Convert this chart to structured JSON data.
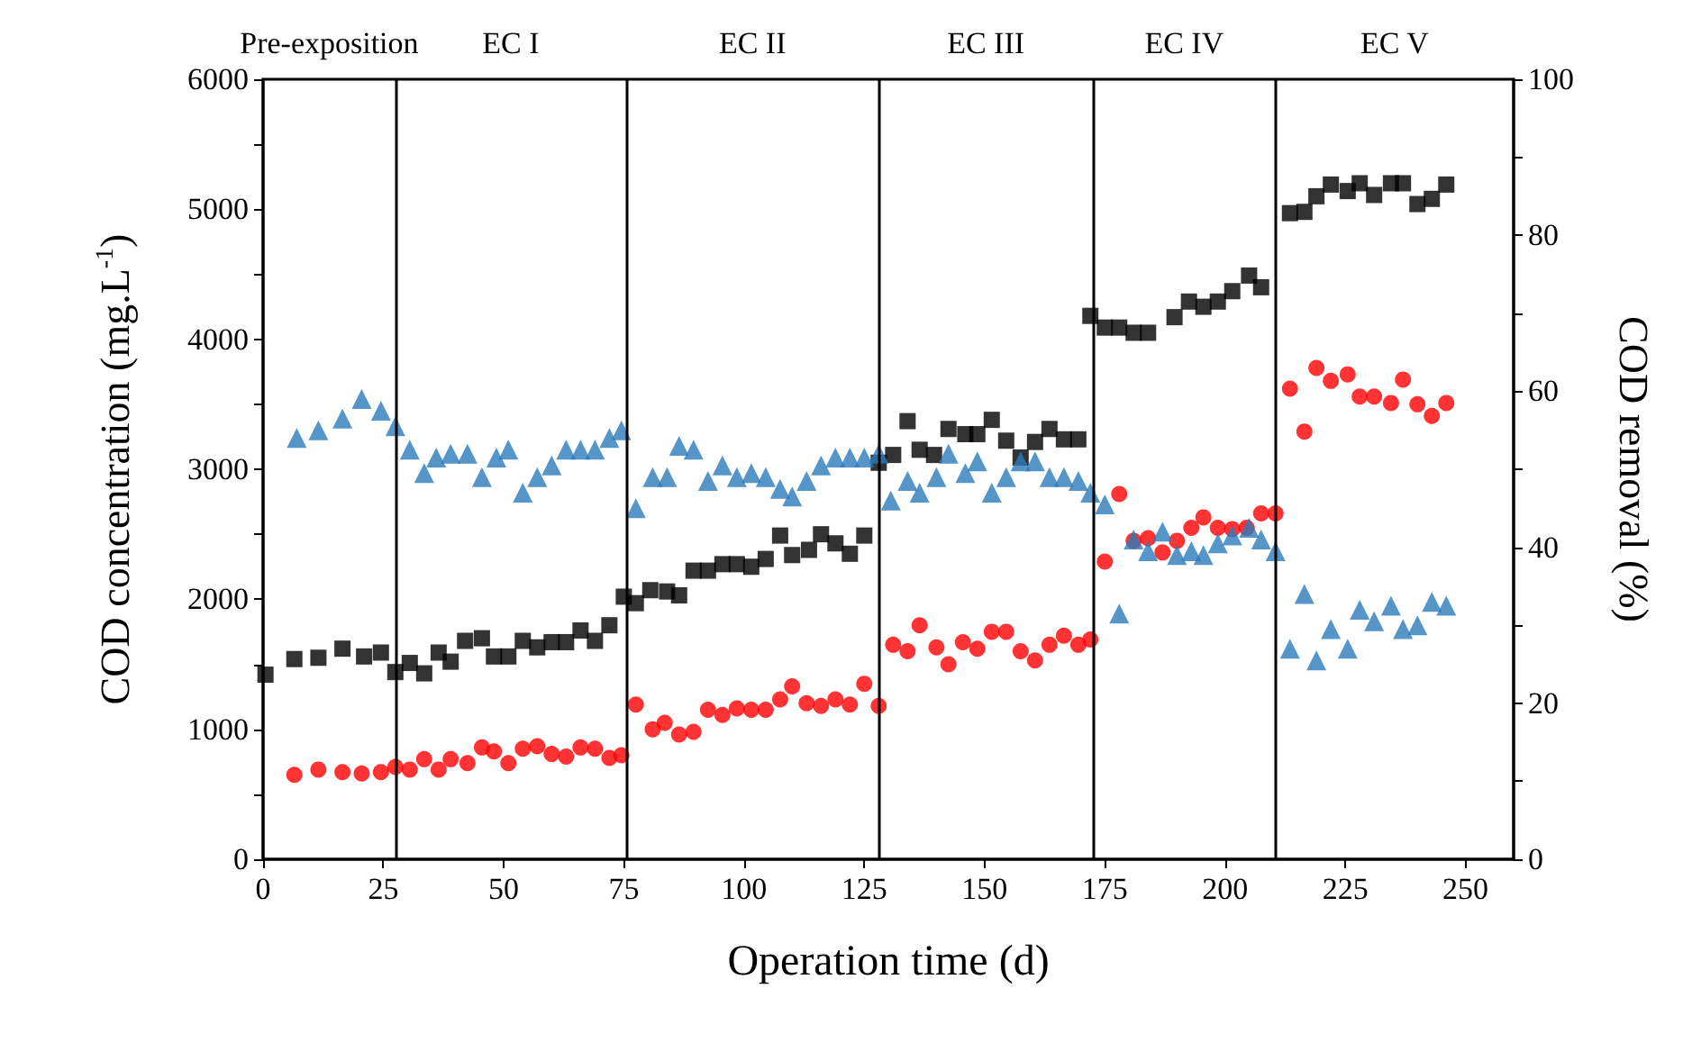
{
  "chart_data": {
    "type": "scatter",
    "xlabel": "Operation time (d)",
    "ylabel": "COD concentration (mg.L$^{-1}$)",
    "y2label": "COD removal (%)",
    "xlim": [
      0,
      260
    ],
    "xticks": [
      0,
      25,
      50,
      75,
      100,
      125,
      150,
      175,
      200,
      225,
      250
    ],
    "ylim": [
      0,
      6000
    ],
    "yticks": [
      0,
      {
        "value": 500,
        "label": null
      },
      1000,
      {
        "value": 1500,
        "label": null
      },
      2000,
      {
        "value": 2500,
        "label": null
      },
      3000,
      {
        "value": 3500,
        "label": null
      },
      4000,
      {
        "value": 4500,
        "label": null
      },
      5000,
      {
        "value": 5500,
        "label": null
      },
      6000
    ],
    "y2lim": [
      0,
      100
    ],
    "y2ticks": [
      0,
      {
        "value": 10,
        "label": null
      },
      20,
      {
        "value": 30,
        "label": null
      },
      40,
      {
        "value": 50,
        "label": null
      },
      60,
      {
        "value": 70,
        "label": null
      },
      80,
      {
        "value": 90,
        "label": null
      },
      100
    ],
    "grid": false,
    "ref_lines": [
      {
        "axis": "x",
        "value": 27.5,
        "color": "#000000"
      },
      {
        "axis": "x",
        "value": 75.5,
        "color": "#000000"
      },
      {
        "axis": "x",
        "value": 128,
        "color": "#000000"
      },
      {
        "axis": "x",
        "value": 172.5,
        "color": "#000000"
      },
      {
        "axis": "x",
        "value": 210.5,
        "color": "#000000"
      }
    ],
    "annotations": [
      "Pre-exposition",
      "EC I",
      "EC II",
      "EC III",
      "EC IV",
      "EC V"
    ],
    "series": [
      {
        "color": "#000000",
        "marker": "square",
        "x": [
          0.5,
          6.5,
          11.5,
          16.5,
          21,
          24.5,
          27.5,
          30.5,
          33.5,
          36.5,
          39,
          42,
          45.5,
          48,
          51,
          54,
          57,
          60,
          63,
          66,
          69,
          72,
          75,
          77.5,
          80.5,
          84,
          86.5,
          89.5,
          92.5,
          95.5,
          98.5,
          101.5,
          104.5,
          107.5,
          110,
          113.5,
          116,
          119,
          122,
          125,
          128,
          131,
          134,
          136.5,
          139.5,
          142.5,
          146,
          148.5,
          151.5,
          154.5,
          157.5,
          160.5,
          163.5,
          166.5,
          169.5,
          172,
          175,
          178,
          181,
          184,
          189.5,
          192.5,
          195.5,
          198.5,
          201.5,
          205,
          207.5,
          213.5,
          216.5,
          219,
          222,
          225.5,
          228,
          231,
          234.5,
          237,
          240,
          243,
          246
        ],
        "values": [
          1420,
          1540,
          1550,
          1620,
          1560,
          1590,
          1440,
          1510,
          1430,
          1590,
          1520,
          1680,
          1700,
          1560,
          1560,
          1680,
          1630,
          1670,
          1670,
          1760,
          1680,
          1800,
          2020,
          1970,
          2070,
          2060,
          2030,
          2220,
          2220,
          2270,
          2270,
          2250,
          2310,
          2490,
          2340,
          2380,
          2500,
          2430,
          2350,
          2490,
          3050,
          3110,
          3370,
          3150,
          3110,
          3310,
          3270,
          3270,
          3380,
          3220,
          3090,
          3210,
          3310,
          3230,
          3230,
          4180,
          4090,
          4090,
          4050,
          4050,
          4170,
          4290,
          4250,
          4290,
          4370,
          4490,
          4400,
          4970,
          4980,
          5100,
          5190,
          5140,
          5200,
          5110,
          5200,
          5200,
          5040,
          5080,
          5190
        ]
      },
      {
        "color": "#ff0000",
        "marker": "circle",
        "x": [
          6.5,
          11.5,
          16.5,
          20.5,
          24.5,
          27.5,
          30.5,
          33.5,
          36.5,
          39,
          42.5,
          45.5,
          48,
          51,
          54,
          57,
          60,
          63,
          66,
          69,
          72,
          74.5,
          77.5,
          81,
          83.5,
          86.5,
          89.5,
          92.5,
          95.5,
          98.5,
          101.5,
          104.5,
          107.5,
          110,
          113,
          116,
          119,
          122,
          125,
          128,
          131,
          134,
          136.5,
          140,
          142.5,
          145.5,
          148.5,
          151.5,
          154.5,
          157.5,
          160.5,
          163.5,
          166.5,
          169.5,
          172,
          175,
          178,
          181,
          184,
          187,
          190,
          193,
          195.5,
          198.5,
          201.5,
          204.5,
          207.5,
          210.5,
          213.5,
          216.5,
          219,
          222,
          225.5,
          228,
          231,
          234.5,
          237,
          240,
          243,
          246
        ],
        "values": [
          650,
          690,
          670,
          660,
          670,
          710,
          690,
          770,
          690,
          770,
          740,
          860,
          830,
          740,
          850,
          870,
          810,
          790,
          860,
          850,
          780,
          800,
          1190,
          1000,
          1050,
          960,
          980,
          1150,
          1110,
          1160,
          1150,
          1150,
          1230,
          1330,
          1200,
          1180,
          1230,
          1190,
          1350,
          1180,
          1650,
          1600,
          1800,
          1630,
          1500,
          1670,
          1620,
          1750,
          1750,
          1600,
          1530,
          1650,
          1720,
          1650,
          1690,
          2290,
          2810,
          2450,
          2470,
          2360,
          2450,
          2550,
          2630,
          2550,
          2540,
          2550,
          2660,
          2660,
          3620,
          3290,
          3780,
          3680,
          3730,
          3560,
          3560,
          3510,
          3690,
          3500,
          3410,
          3510
        ]
      },
      {
        "color": "#2a7ab9",
        "marker": "triangle",
        "axis": "y2",
        "x": [
          7,
          11.5,
          16.5,
          20.5,
          24.5,
          27.5,
          30.5,
          33.5,
          36,
          39,
          42.5,
          45.5,
          48.5,
          51,
          54,
          57,
          60,
          63,
          66,
          69,
          72,
          74.5,
          77.5,
          81,
          84,
          86.5,
          89.5,
          92.5,
          95.5,
          98.5,
          101.5,
          104.5,
          107.5,
          110,
          113,
          116,
          119,
          122,
          125,
          128,
          130.5,
          134,
          136.5,
          140,
          142.5,
          146,
          148.5,
          151.5,
          154.5,
          157.5,
          160.5,
          163.5,
          166.5,
          169.5,
          172,
          175,
          178,
          181,
          184,
          187,
          190,
          193,
          195.5,
          198.5,
          201.5,
          205,
          207.5,
          210.5,
          213.5,
          216.5,
          219,
          222,
          225.5,
          228,
          231,
          234.5,
          237,
          240,
          243,
          246
        ],
        "values": [
          54,
          55,
          56.5,
          59,
          57.5,
          55.5,
          52.5,
          49.5,
          51.5,
          52,
          52,
          49,
          51.5,
          52.5,
          47,
          49,
          50.5,
          52.5,
          52.5,
          52.5,
          54,
          55,
          45,
          49,
          49,
          53,
          52.5,
          48.5,
          50.5,
          49,
          49.5,
          49,
          47.5,
          46.5,
          48.5,
          50.5,
          51.5,
          51.5,
          51.5,
          52,
          46,
          48.5,
          47,
          49,
          52,
          49.5,
          51,
          47,
          49,
          51,
          51,
          49,
          49,
          48.5,
          47,
          45.5,
          31.5,
          41,
          39.5,
          42,
          39,
          39.5,
          39,
          40.5,
          41.5,
          42.5,
          41,
          39.5,
          27,
          34,
          25.5,
          29.5,
          27,
          32,
          30.5,
          32.5,
          29.5,
          30,
          33,
          32.5
        ]
      }
    ]
  }
}
